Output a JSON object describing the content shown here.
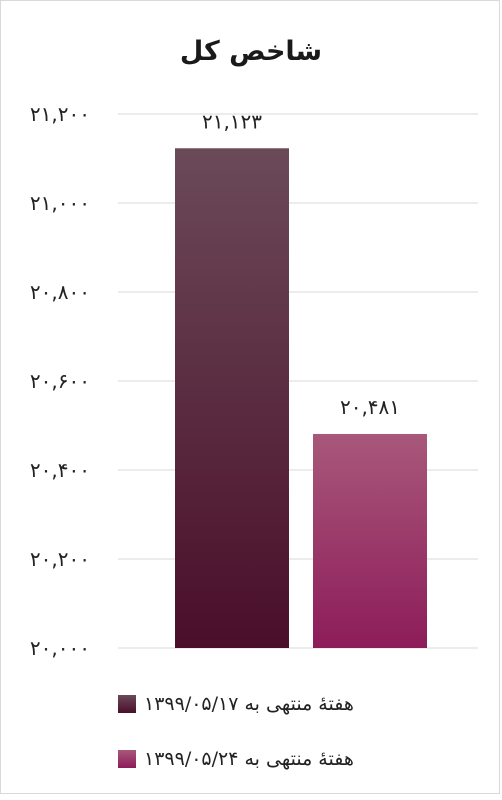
{
  "chart_data": {
    "type": "bar",
    "title": "شاخص کل",
    "xlabel": "",
    "ylabel": "",
    "ylim": [
      20000,
      21200
    ],
    "yticks": [
      20000,
      20200,
      20400,
      20600,
      20800,
      21000,
      21200
    ],
    "ytick_labels": [
      "۲۰,۰۰۰",
      "۲۰,۲۰۰",
      "۲۰,۴۰۰",
      "۲۰,۶۰۰",
      "۲۰,۸۰۰",
      "۲۱,۰۰۰",
      "۲۱,۲۰۰"
    ],
    "grid": true,
    "legend_position": "bottom",
    "series": [
      {
        "name": "هفتهٔ منتهی به ۱۳۹۹/۰۵/۱۷",
        "value": 21123,
        "data_label": "۲۱,۱۲۳",
        "color_top": "#6b4a58",
        "color_bottom": "#4a0e2a"
      },
      {
        "name": "هفتهٔ منتهی به ۱۳۹۹/۰۵/۲۴",
        "value": 20481,
        "data_label": "۲۰,۴۸۱",
        "color_top": "#a8587a",
        "color_bottom": "#8d1c5a"
      }
    ]
  }
}
